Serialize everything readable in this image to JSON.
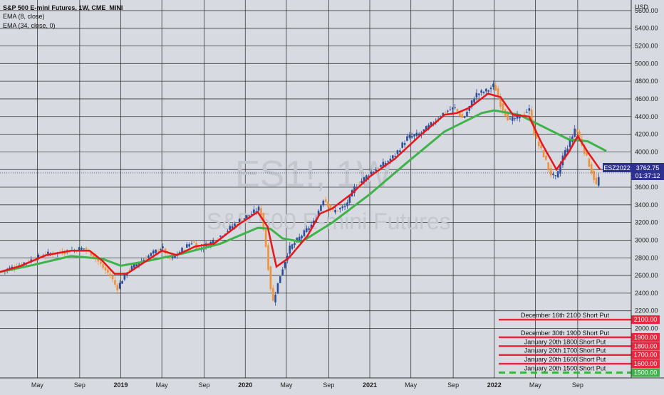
{
  "header": {
    "symbol_line": "S&P 500 E-mini Futures, 1W, CME_MINI",
    "ema_fast_label": "EMA (8, close)",
    "ema_slow_label": "EMA (34, close, 0)"
  },
  "watermark": {
    "ticker": "ES1!, 1W",
    "name": "S&P 500 E-mini Futures"
  },
  "price_badge": {
    "symbol": "ESZ2022",
    "price": "3762.75",
    "countdown": "01:37:12"
  },
  "colors": {
    "background": "#d7dbe1",
    "grid": "#3a3a3a",
    "candle_up": "#2a4d9c",
    "candle_down": "#f0923a",
    "ema_fast": "#e8161b",
    "ema_slow": "#3fb24a",
    "order_line": "#e8263d",
    "order_line_green": "#3fb24a",
    "badge": "#2e3192"
  },
  "chart_data": {
    "type": "candlestick",
    "currency_label": "USD",
    "y_ticks": [
      "5600.00",
      "5400.00",
      "5200.00",
      "5000.00",
      "4800.00",
      "4600.00",
      "4400.00",
      "4200.00",
      "4000.00",
      "3800.00",
      "3600.00",
      "3400.00",
      "3200.00",
      "3000.00",
      "2800.00",
      "2600.00",
      "2400.00",
      "2200.00",
      "2000.00"
    ],
    "ylim": [
      1440,
      5720
    ],
    "x_ticks": [
      {
        "label": "May",
        "t": 2018.33,
        "bold": false
      },
      {
        "label": "Sep",
        "t": 2018.67,
        "bold": false
      },
      {
        "label": "2019",
        "t": 2019.0,
        "bold": true
      },
      {
        "label": "May",
        "t": 2019.33,
        "bold": false
      },
      {
        "label": "Sep",
        "t": 2019.67,
        "bold": false
      },
      {
        "label": "2020",
        "t": 2020.0,
        "bold": true
      },
      {
        "label": "May",
        "t": 2020.33,
        "bold": false
      },
      {
        "label": "Sep",
        "t": 2020.67,
        "bold": false
      },
      {
        "label": "2021",
        "t": 2021.0,
        "bold": true
      },
      {
        "label": "May",
        "t": 2021.33,
        "bold": false
      },
      {
        "label": "Sep",
        "t": 2021.67,
        "bold": false
      },
      {
        "label": "2022",
        "t": 2022.0,
        "bold": true
      },
      {
        "label": "May",
        "t": 2022.33,
        "bold": false
      },
      {
        "label": "Sep",
        "t": 2022.67,
        "bold": false
      }
    ],
    "xlim": [
      2018.03,
      2023.1
    ],
    "price_path": [
      [
        2018.05,
        2650
      ],
      [
        2018.15,
        2700
      ],
      [
        2018.25,
        2760
      ],
      [
        2018.4,
        2840
      ],
      [
        2018.55,
        2870
      ],
      [
        2018.7,
        2910
      ],
      [
        2018.78,
        2830
      ],
      [
        2018.85,
        2700
      ],
      [
        2018.92,
        2590
      ],
      [
        2018.97,
        2450
      ],
      [
        2019.05,
        2650
      ],
      [
        2019.2,
        2800
      ],
      [
        2019.33,
        2920
      ],
      [
        2019.4,
        2780
      ],
      [
        2019.5,
        2900
      ],
      [
        2019.58,
        2990
      ],
      [
        2019.62,
        2900
      ],
      [
        2019.7,
        2950
      ],
      [
        2019.8,
        3050
      ],
      [
        2019.95,
        3220
      ],
      [
        2020.05,
        3300
      ],
      [
        2020.12,
        3370
      ],
      [
        2020.16,
        3000
      ],
      [
        2020.2,
        2500
      ],
      [
        2020.22,
        2290
      ],
      [
        2020.28,
        2600
      ],
      [
        2020.35,
        2900
      ],
      [
        2020.45,
        3050
      ],
      [
        2020.55,
        3200
      ],
      [
        2020.63,
        3480
      ],
      [
        2020.7,
        3320
      ],
      [
        2020.8,
        3380
      ],
      [
        2020.88,
        3600
      ],
      [
        2021.0,
        3760
      ],
      [
        2021.1,
        3850
      ],
      [
        2021.2,
        3960
      ],
      [
        2021.3,
        4160
      ],
      [
        2021.4,
        4200
      ],
      [
        2021.5,
        4320
      ],
      [
        2021.6,
        4450
      ],
      [
        2021.68,
        4500
      ],
      [
        2021.75,
        4370
      ],
      [
        2021.85,
        4650
      ],
      [
        2021.95,
        4700
      ],
      [
        2022.0,
        4760
      ],
      [
        2022.05,
        4540
      ],
      [
        2022.12,
        4350
      ],
      [
        2022.2,
        4400
      ],
      [
        2022.28,
        4480
      ],
      [
        2022.33,
        4150
      ],
      [
        2022.4,
        3950
      ],
      [
        2022.45,
        3750
      ],
      [
        2022.5,
        3700
      ],
      [
        2022.55,
        3950
      ],
      [
        2022.62,
        4150
      ],
      [
        2022.65,
        4280
      ],
      [
        2022.7,
        4100
      ],
      [
        2022.75,
        3900
      ],
      [
        2022.8,
        3700
      ],
      [
        2022.82,
        3620
      ],
      [
        2022.85,
        3760
      ]
    ],
    "ema_fast_path": [
      [
        2018.03,
        2640
      ],
      [
        2018.2,
        2710
      ],
      [
        2018.4,
        2830
      ],
      [
        2018.6,
        2880
      ],
      [
        2018.75,
        2880
      ],
      [
        2018.85,
        2770
      ],
      [
        2018.95,
        2620
      ],
      [
        2019.05,
        2620
      ],
      [
        2019.2,
        2760
      ],
      [
        2019.33,
        2880
      ],
      [
        2019.45,
        2830
      ],
      [
        2019.6,
        2930
      ],
      [
        2019.75,
        2960
      ],
      [
        2019.95,
        3180
      ],
      [
        2020.1,
        3320
      ],
      [
        2020.18,
        3150
      ],
      [
        2020.25,
        2700
      ],
      [
        2020.35,
        2800
      ],
      [
        2020.5,
        3050
      ],
      [
        2020.6,
        3300
      ],
      [
        2020.7,
        3360
      ],
      [
        2020.85,
        3520
      ],
      [
        2021.0,
        3720
      ],
      [
        2021.2,
        3920
      ],
      [
        2021.4,
        4180
      ],
      [
        2021.6,
        4420
      ],
      [
        2021.7,
        4440
      ],
      [
        2021.8,
        4500
      ],
      [
        2021.95,
        4660
      ],
      [
        2022.05,
        4620
      ],
      [
        2022.15,
        4420
      ],
      [
        2022.28,
        4400
      ],
      [
        2022.38,
        4100
      ],
      [
        2022.5,
        3800
      ],
      [
        2022.6,
        4000
      ],
      [
        2022.67,
        4180
      ],
      [
        2022.75,
        4000
      ],
      [
        2022.85,
        3800
      ]
    ],
    "ema_slow_path": [
      [
        2018.03,
        2640
      ],
      [
        2018.3,
        2720
      ],
      [
        2018.6,
        2820
      ],
      [
        2018.85,
        2790
      ],
      [
        2019.0,
        2710
      ],
      [
        2019.2,
        2760
      ],
      [
        2019.5,
        2850
      ],
      [
        2019.8,
        2960
      ],
      [
        2020.1,
        3140
      ],
      [
        2020.2,
        3130
      ],
      [
        2020.3,
        3020
      ],
      [
        2020.45,
        2980
      ],
      [
        2020.7,
        3200
      ],
      [
        2021.0,
        3520
      ],
      [
        2021.3,
        3880
      ],
      [
        2021.6,
        4230
      ],
      [
        2021.9,
        4440
      ],
      [
        2022.0,
        4470
      ],
      [
        2022.2,
        4420
      ],
      [
        2022.4,
        4280
      ],
      [
        2022.6,
        4140
      ],
      [
        2022.75,
        4120
      ],
      [
        2022.9,
        4010
      ]
    ],
    "order_lines": [
      {
        "label": "December 16th 2100 Short Put",
        "price": 2100,
        "tag": "2100.00",
        "style": "solid"
      },
      {
        "label": "December 30th 1900 Short Put",
        "price": 1900,
        "tag": "1900.00",
        "style": "solid"
      },
      {
        "label": "January 20th 1800 Short Put",
        "price": 1800,
        "tag": "1800.00",
        "style": "solid"
      },
      {
        "label": "January 20th 1700 Short Put",
        "price": 1700,
        "tag": "1700.00",
        "style": "solid"
      },
      {
        "label": "January 20th 1600 Short Put",
        "price": 1600,
        "tag": "1600.00",
        "style": "solid"
      },
      {
        "label": "January 20th 1500 Short Put",
        "price": 1500,
        "tag": "1500.00",
        "style": "dashed"
      }
    ],
    "last_price": 3762.75
  }
}
